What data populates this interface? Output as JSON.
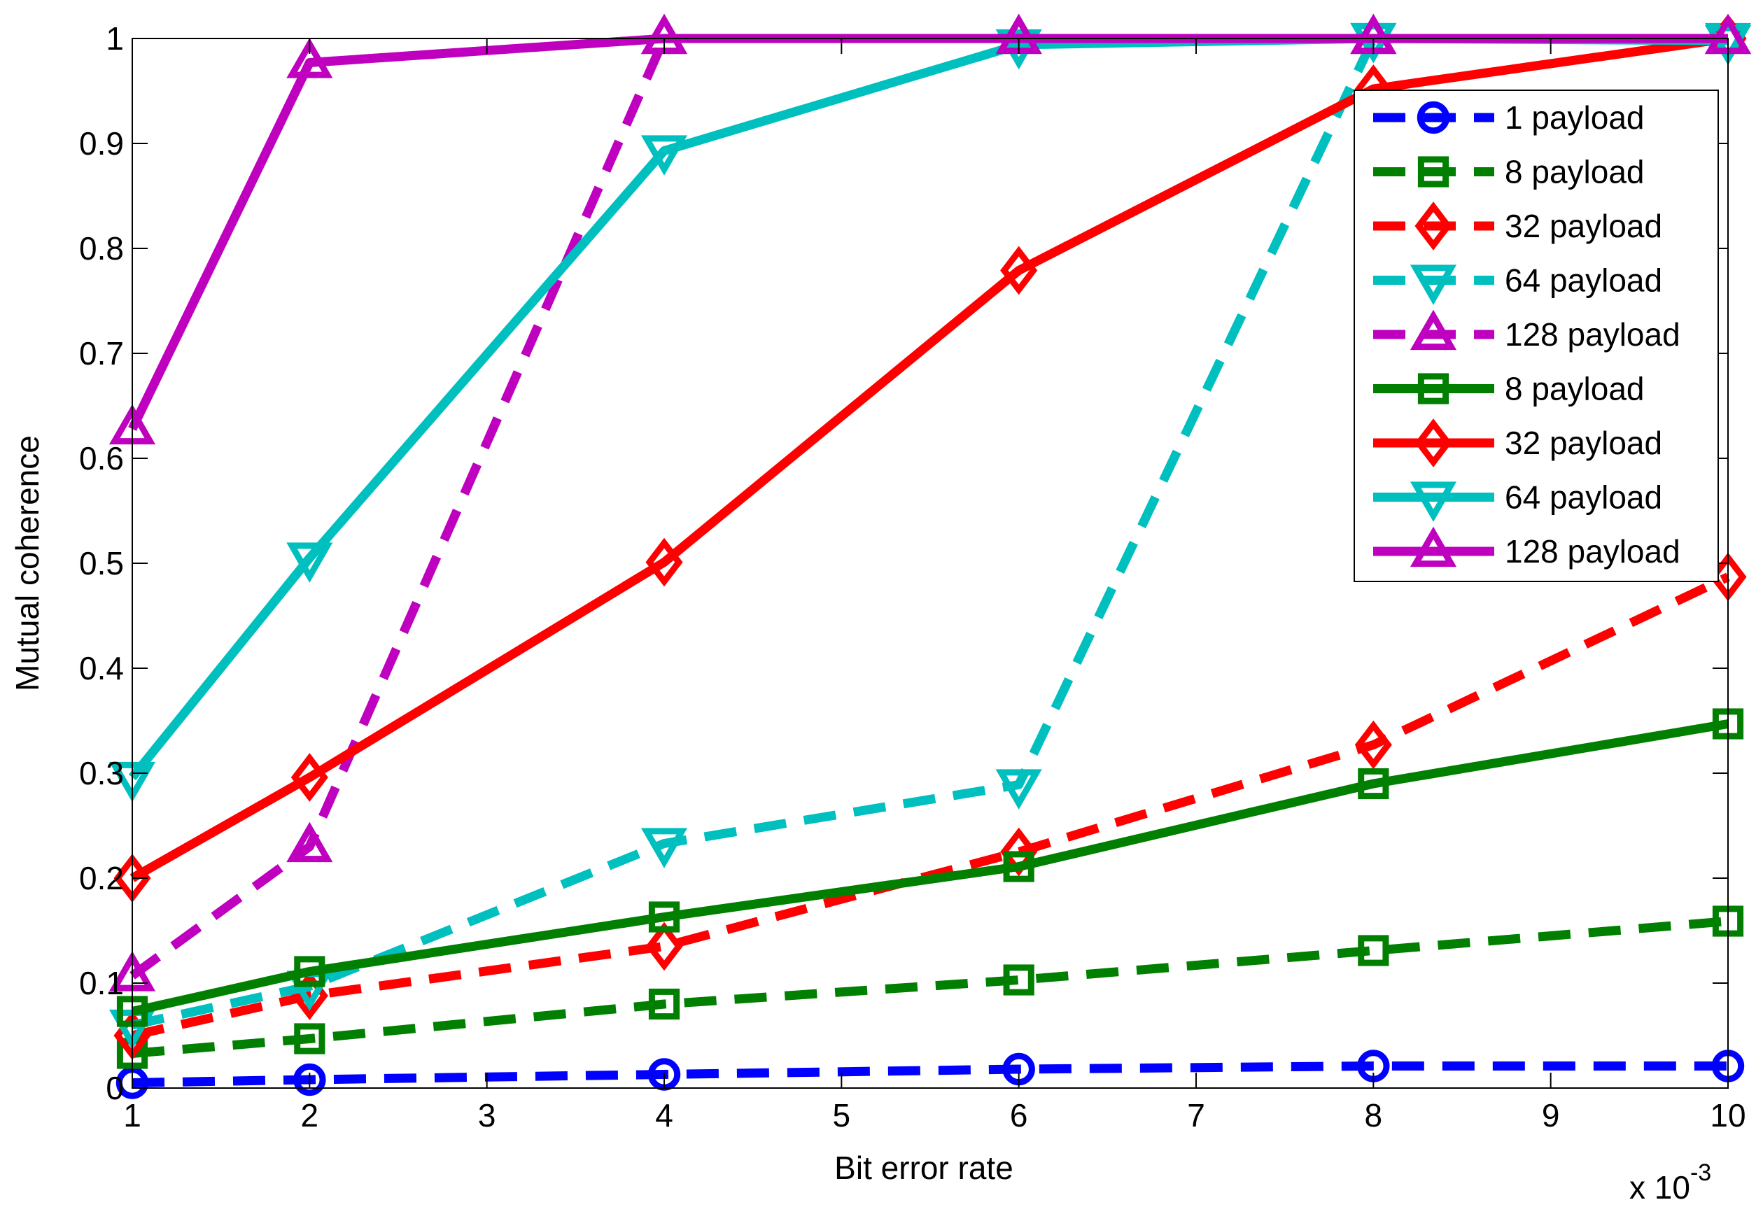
{
  "chart_data": {
    "type": "line",
    "xlabel": "Bit error rate",
    "ylabel": "Mutual coherence",
    "x_multiplier": "x 10",
    "x_multiplier_exponent": "-3",
    "xlim": [
      1,
      10
    ],
    "ylim": [
      0,
      1
    ],
    "xticks": [
      "1",
      "2",
      "3",
      "4",
      "5",
      "6",
      "7",
      "8",
      "9",
      "10"
    ],
    "yticks": [
      "0",
      "0.1",
      "0.2",
      "0.3",
      "0.4",
      "0.5",
      "0.6",
      "0.7",
      "0.8",
      "0.9",
      "1"
    ],
    "grid": false,
    "legend_position": "top-right",
    "x": [
      1,
      2,
      4,
      6,
      8,
      10
    ],
    "series": [
      {
        "name": "1 payload",
        "color": "#0000ff",
        "dash": "dashed",
        "marker": "circle",
        "values": [
          0.005,
          0.008,
          0.013,
          0.018,
          0.021,
          0.021
        ]
      },
      {
        "name": "8 payload",
        "color": "#007f00",
        "dash": "dashed",
        "marker": "square",
        "values": [
          0.033,
          0.047,
          0.08,
          0.103,
          0.131,
          0.159
        ]
      },
      {
        "name": "32 payload",
        "color": "#ff0000",
        "dash": "dashed",
        "marker": "diamond",
        "values": [
          0.05,
          0.088,
          0.135,
          0.225,
          0.327,
          0.487
        ]
      },
      {
        "name": "64 payload",
        "color": "#00bfbf",
        "dash": "dashed",
        "marker": "triangle-down",
        "values": [
          0.06,
          0.097,
          0.233,
          0.289,
          1.0,
          1.0
        ]
      },
      {
        "name": "128 payload",
        "color": "#bf00bf",
        "dash": "dashed",
        "marker": "triangle-up",
        "values": [
          0.107,
          0.23,
          1.0,
          1.0,
          1.0,
          1.0
        ]
      },
      {
        "name": "8 payload",
        "color": "#007f00",
        "dash": "solid",
        "marker": "square",
        "values": [
          0.073,
          0.111,
          0.163,
          0.211,
          0.29,
          0.347
        ]
      },
      {
        "name": "32 payload",
        "color": "#ff0000",
        "dash": "solid",
        "marker": "diamond",
        "values": [
          0.2,
          0.296,
          0.501,
          0.779,
          0.952,
          1.0
        ]
      },
      {
        "name": "64 payload",
        "color": "#00bfbf",
        "dash": "solid",
        "marker": "triangle-down",
        "values": [
          0.296,
          0.505,
          0.893,
          0.994,
          1.0,
          0.998
        ]
      },
      {
        "name": "128 payload",
        "color": "#bf00bf",
        "dash": "solid",
        "marker": "triangle-up",
        "values": [
          0.628,
          0.977,
          1.0,
          1.0,
          1.0,
          1.0
        ]
      }
    ]
  }
}
